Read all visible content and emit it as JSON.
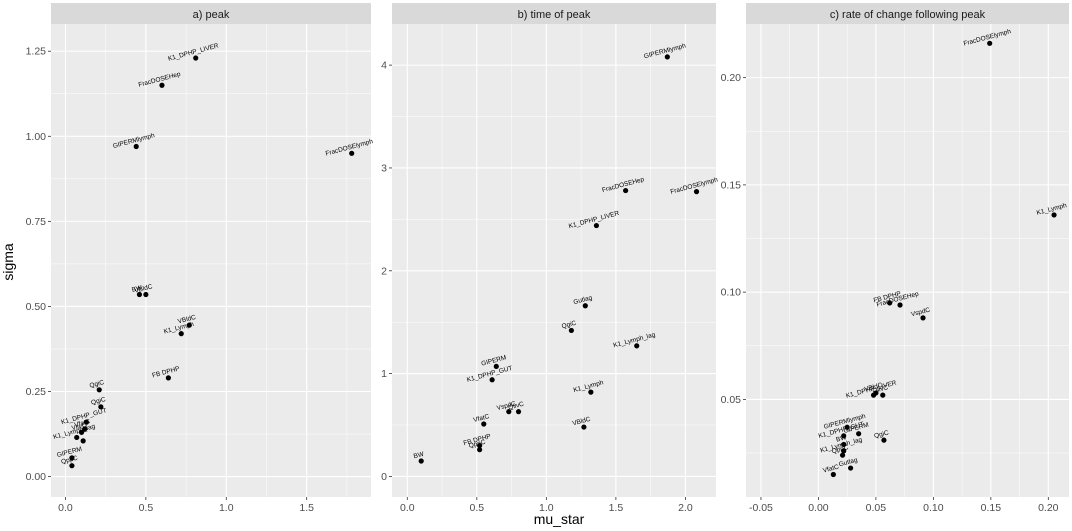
{
  "xlabel": "mu_star",
  "ylabel": "sigma",
  "colors": {
    "panel_bg": "#ebebeb",
    "strip_bg": "#d9d9d9",
    "grid": "#ffffff",
    "point": "#000000"
  },
  "chart_data": [
    {
      "type": "scatter",
      "title": "a) peak",
      "xlim": [
        -0.09,
        1.9
      ],
      "ylim": [
        -0.06,
        1.33
      ],
      "xticks": [
        0.0,
        0.5,
        1.0,
        1.5
      ],
      "xtick_labels": [
        "0.0",
        "0.5",
        "1.0",
        "1.5"
      ],
      "yticks": [
        0.0,
        0.25,
        0.5,
        0.75,
        1.0,
        1.25
      ],
      "ytick_labels": [
        "0.00",
        "0.25",
        "0.50",
        "0.75",
        "1.00",
        "1.25"
      ],
      "points": [
        {
          "label": "K1_DPHP_LIVER",
          "x": 0.81,
          "y": 1.23
        },
        {
          "label": "FracDOSEHep",
          "x": 0.6,
          "y": 1.15
        },
        {
          "label": "GIPERMlymph",
          "x": 0.44,
          "y": 0.97
        },
        {
          "label": "FracDOSElymph",
          "x": 1.78,
          "y": 0.95
        },
        {
          "label": "BW",
          "x": 0.46,
          "y": 0.535
        },
        {
          "label": "VBldC",
          "x": 0.5,
          "y": 0.535
        },
        {
          "label": "VBldC",
          "x": 0.77,
          "y": 0.445
        },
        {
          "label": "K1_Lymph",
          "x": 0.72,
          "y": 0.42
        },
        {
          "label": "FB DPHP",
          "x": 0.64,
          "y": 0.29
        },
        {
          "label": "QgiC",
          "x": 0.21,
          "y": 0.255
        },
        {
          "label": "QgiC",
          "x": 0.22,
          "y": 0.205
        },
        {
          "label": "K1_DPHP_GUT",
          "x": 0.13,
          "y": 0.16
        },
        {
          "label": "VfatC",
          "x": 0.12,
          "y": 0.14
        },
        {
          "label": "VlivC",
          "x": 0.1,
          "y": 0.13
        },
        {
          "label": "K1_Lymph_lag",
          "x": 0.07,
          "y": 0.115
        },
        {
          "label": "",
          "x": 0.11,
          "y": 0.105
        },
        {
          "label": "GIPERM",
          "x": 0.04,
          "y": 0.055
        },
        {
          "label": "QppC",
          "x": 0.04,
          "y": 0.032
        }
      ]
    },
    {
      "type": "scatter",
      "title": "b) time of peak",
      "xlim": [
        -0.11,
        2.22
      ],
      "ylim": [
        -0.2,
        4.4
      ],
      "xticks": [
        0.0,
        0.5,
        1.0,
        1.5,
        2.0
      ],
      "xtick_labels": [
        "0.0",
        "0.5",
        "1.0",
        "1.5",
        "2.0"
      ],
      "yticks": [
        0,
        1,
        2,
        3,
        4
      ],
      "ytick_labels": [
        "0",
        "1",
        "2",
        "3",
        "4"
      ],
      "points": [
        {
          "label": "GIPERMlymph",
          "x": 1.87,
          "y": 4.08
        },
        {
          "label": "FracDOSEHep",
          "x": 1.57,
          "y": 2.78
        },
        {
          "label": "FracDOSElymph",
          "x": 2.08,
          "y": 2.77
        },
        {
          "label": "K1_DPHP_LIVER",
          "x": 1.36,
          "y": 2.44
        },
        {
          "label": "Gutlag",
          "x": 1.28,
          "y": 1.66
        },
        {
          "label": "QgiC",
          "x": 1.18,
          "y": 1.42
        },
        {
          "label": "K1_Lymph_lag",
          "x": 1.65,
          "y": 1.27
        },
        {
          "label": "GIPERM",
          "x": 0.64,
          "y": 1.07
        },
        {
          "label": "K1_DPHP_GUT",
          "x": 0.61,
          "y": 0.94
        },
        {
          "label": "K1_Lymph",
          "x": 1.32,
          "y": 0.82
        },
        {
          "label": "VspdC",
          "x": 0.73,
          "y": 0.63
        },
        {
          "label": "QlivC",
          "x": 0.8,
          "y": 0.63
        },
        {
          "label": "VfatC",
          "x": 0.55,
          "y": 0.51
        },
        {
          "label": "VBldC",
          "x": 1.27,
          "y": 0.48
        },
        {
          "label": "FB DPHP",
          "x": 0.52,
          "y": 0.3
        },
        {
          "label": "QppC",
          "x": 0.52,
          "y": 0.26
        },
        {
          "label": "BW",
          "x": 0.1,
          "y": 0.15
        }
      ]
    },
    {
      "type": "scatter",
      "title": "c) rate of change following peak",
      "xlim": [
        -0.063,
        0.218
      ],
      "ylim": [
        0.0045,
        0.225
      ],
      "xticks": [
        -0.05,
        0.0,
        0.05,
        0.1,
        0.15,
        0.2
      ],
      "xtick_labels": [
        "-0.05",
        "0.00",
        "0.05",
        "0.10",
        "0.15",
        "0.20"
      ],
      "yticks": [
        0.05,
        0.1,
        0.15,
        0.2
      ],
      "ytick_labels": [
        "0.05",
        "0.10",
        "0.15",
        "0.20"
      ],
      "points": [
        {
          "label": "FracDOSElymph",
          "x": 0.149,
          "y": 0.216
        },
        {
          "label": "K1_Lymph",
          "x": 0.205,
          "y": 0.136
        },
        {
          "label": "FB DPHP",
          "x": 0.062,
          "y": 0.095
        },
        {
          "label": "FracDOSEHep",
          "x": 0.071,
          "y": 0.094
        },
        {
          "label": "VspdC",
          "x": 0.091,
          "y": 0.088
        },
        {
          "label": "K1_DPHP_LIVER",
          "x": 0.048,
          "y": 0.052
        },
        {
          "label": "VBldC",
          "x": 0.05,
          "y": 0.053
        },
        {
          "label": "QlivC",
          "x": 0.056,
          "y": 0.052
        },
        {
          "label": "GIPERMlymph",
          "x": 0.025,
          "y": 0.037
        },
        {
          "label": "GIPERM",
          "x": 0.035,
          "y": 0.034
        },
        {
          "label": "K1_DPHP_GUT",
          "x": 0.022,
          "y": 0.033
        },
        {
          "label": "QgiC",
          "x": 0.057,
          "y": 0.031
        },
        {
          "label": "BW",
          "x": 0.022,
          "y": 0.029
        },
        {
          "label": "K1_Lymph_lag",
          "x": 0.022,
          "y": 0.026
        },
        {
          "label": "QppC",
          "x": 0.021,
          "y": 0.024
        },
        {
          "label": "VfatC",
          "x": 0.013,
          "y": 0.015
        },
        {
          "label": "Gutlag",
          "x": 0.028,
          "y": 0.018
        }
      ]
    }
  ]
}
